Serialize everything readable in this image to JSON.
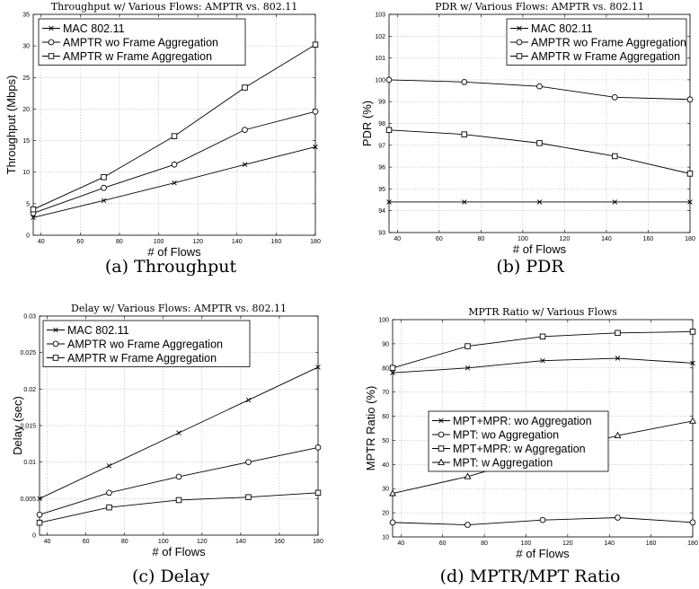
{
  "captions": [
    "(a) Throughput",
    "(b) PDR",
    "(c) Delay",
    "(d) MPTR/MPT Ratio"
  ],
  "chart_data": [
    {
      "type": "line",
      "title": "Throughput w/ Various Flows: AMPTR vs. 802.11",
      "xlabel": "# of Flows",
      "ylabel": "Throughput (Mbps)",
      "xlim": [
        36,
        180
      ],
      "ylim": [
        0,
        35
      ],
      "xticks": [
        40,
        60,
        80,
        100,
        120,
        140,
        160,
        180
      ],
      "yticks": [
        0,
        5,
        10,
        15,
        20,
        25,
        30,
        35
      ],
      "grid": true,
      "legend": "top-left",
      "x": [
        36,
        72,
        108,
        144,
        180
      ],
      "series": [
        {
          "name": "MAC 802.11",
          "marker": "x",
          "values": [
            2.8,
            5.5,
            8.3,
            11.2,
            14.0
          ]
        },
        {
          "name": "AMPTR wo Frame Aggregation",
          "marker": "o",
          "values": [
            3.5,
            7.5,
            11.2,
            16.7,
            19.6
          ]
        },
        {
          "name": "AMPTR w Frame Aggregation",
          "marker": "s",
          "values": [
            4.1,
            9.2,
            15.7,
            23.4,
            30.2
          ]
        }
      ]
    },
    {
      "type": "line",
      "title": "PDR w/ Various Flows: AMPTR vs. 802.11",
      "xlabel": "# of Flows",
      "ylabel": "PDR (%)",
      "xlim": [
        36,
        180
      ],
      "ylim": [
        93,
        103
      ],
      "xticks": [
        40,
        60,
        80,
        100,
        120,
        140,
        160,
        180
      ],
      "yticks": [
        93,
        94,
        95,
        96,
        97,
        98,
        99,
        100,
        101,
        102,
        103
      ],
      "grid": true,
      "legend": "top-right",
      "x": [
        36,
        72,
        108,
        144,
        180
      ],
      "series": [
        {
          "name": "MAC 802.11",
          "marker": "x",
          "values": [
            94.4,
            94.4,
            94.4,
            94.4,
            94.4
          ]
        },
        {
          "name": "AMPTR wo Frame Aggregation",
          "marker": "o",
          "values": [
            100.0,
            99.9,
            99.7,
            99.2,
            99.1
          ]
        },
        {
          "name": "AMPTR w Frame Aggregation",
          "marker": "s",
          "values": [
            97.7,
            97.5,
            97.1,
            96.5,
            95.7
          ]
        }
      ]
    },
    {
      "type": "line",
      "title": "Delay w/ Various Flows: AMPTR vs. 802.11",
      "xlabel": "# of Flows",
      "ylabel": "Delay (sec)",
      "xlim": [
        36,
        180
      ],
      "ylim": [
        0,
        0.03
      ],
      "xticks": [
        40,
        60,
        80,
        100,
        120,
        140,
        160,
        180
      ],
      "yticks": [
        0,
        0.005,
        0.01,
        0.015,
        0.02,
        0.025,
        0.03
      ],
      "grid": true,
      "legend": "top-left",
      "x": [
        36,
        72,
        108,
        144,
        180
      ],
      "series": [
        {
          "name": "MAC 802.11",
          "marker": "x",
          "values": [
            0.005,
            0.0095,
            0.014,
            0.0185,
            0.023
          ]
        },
        {
          "name": "AMPTR wo Frame Aggregation",
          "marker": "o",
          "values": [
            0.0028,
            0.0058,
            0.008,
            0.01,
            0.012
          ]
        },
        {
          "name": "AMPTR w Frame Aggregation",
          "marker": "s",
          "values": [
            0.0017,
            0.0038,
            0.0048,
            0.0052,
            0.0058
          ]
        }
      ]
    },
    {
      "type": "line",
      "title": "MPTR Ratio w/ Various Flows",
      "xlabel": "# of Flows",
      "ylabel": "MPTR Ratio (%)",
      "xlim": [
        36,
        180
      ],
      "ylim": [
        10,
        100
      ],
      "xticks": [
        40,
        60,
        80,
        100,
        120,
        140,
        160,
        180
      ],
      "yticks": [
        10,
        20,
        30,
        40,
        50,
        60,
        70,
        80,
        90,
        100
      ],
      "grid": true,
      "legend": "middle-left",
      "x": [
        36,
        72,
        108,
        144,
        180
      ],
      "series": [
        {
          "name": "MPT+MPR: wo Aggregation",
          "marker": "x",
          "values": [
            78,
            80,
            83,
            84,
            82
          ]
        },
        {
          "name": "MPT: wo Aggregation",
          "marker": "o",
          "values": [
            16,
            15,
            17,
            18,
            16
          ]
        },
        {
          "name": "MPT+MPR: w Aggregation",
          "marker": "s",
          "values": [
            80,
            89,
            93,
            94.5,
            95
          ]
        },
        {
          "name": "MPT: w Aggregation",
          "marker": "^",
          "values": [
            28,
            35,
            44,
            52,
            58
          ]
        }
      ]
    }
  ]
}
